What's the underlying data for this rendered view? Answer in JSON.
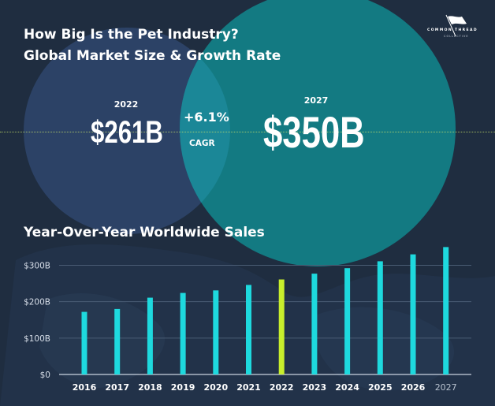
{
  "header": {
    "title_line1": "How Big Is the Pet Industry?",
    "title_line2": "Global Market Size & Growth Rate",
    "logo_name": "COMMON THREAD",
    "logo_sub": "COLLECTIVE",
    "logo_icon": "flag-icon"
  },
  "summary": {
    "start_year": "2022",
    "start_value": "$261B",
    "end_year": "2027",
    "end_value": "$350B",
    "growth": "+6.1%",
    "growth_label": "CAGR"
  },
  "colors": {
    "background": "#1f2d40",
    "circle_2022": "#2c4266",
    "circle_2027": "#137a82",
    "overlap": "#1b8797",
    "bar": "#1ed9de",
    "highlight_bar": "#c8ef2c",
    "gridline": "#4a5c74"
  },
  "chart_data": {
    "type": "bar",
    "title": "Year-Over-Year Worldwide Sales",
    "xlabel": "",
    "ylabel": "",
    "categories": [
      "2016",
      "2017",
      "2018",
      "2019",
      "2020",
      "2021",
      "2022",
      "2023",
      "2024",
      "2025",
      "2026",
      "2027"
    ],
    "values": [
      172,
      180,
      211,
      224,
      231,
      246,
      261,
      277,
      292,
      311,
      330,
      350
    ],
    "unit": "$B",
    "highlight": "2022",
    "ylim": [
      0,
      350
    ],
    "yticks": [
      0,
      100,
      200,
      300
    ],
    "ytick_labels": [
      "$0",
      "$100B",
      "$200B",
      "$300B"
    ],
    "grid": true,
    "legend": "none"
  }
}
